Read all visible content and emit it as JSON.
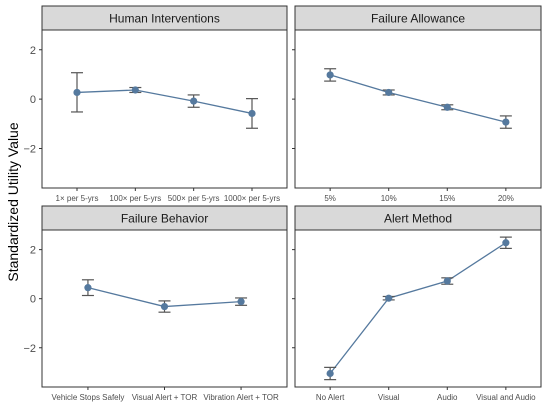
{
  "chart_data": {
    "type": "line",
    "ylabel": "Standardized Utility Value",
    "ylim": [
      -3.6,
      2.8
    ],
    "yticks": [
      -2,
      0,
      2
    ],
    "ytick_labels": [
      "−2",
      "0",
      "2"
    ],
    "color": "#55799e",
    "errorbar_color": "#555555",
    "grid": true,
    "panels": [
      {
        "title": "Human Interventions",
        "categories": [
          "1× per 5-yrs",
          "100× per 5-yrs",
          "500× per 5-yrs",
          "1000× per 5-yrs"
        ],
        "values": [
          0.27,
          0.37,
          -0.08,
          -0.58
        ],
        "lower": [
          -0.52,
          0.27,
          -0.33,
          -1.18
        ],
        "upper": [
          1.07,
          0.47,
          0.17,
          0.02
        ]
      },
      {
        "title": "Failure Allowance",
        "categories": [
          "5%",
          "10%",
          "15%",
          "20%"
        ],
        "values": [
          0.98,
          0.27,
          -0.33,
          -0.93
        ],
        "lower": [
          0.73,
          0.17,
          -0.43,
          -1.18
        ],
        "upper": [
          1.23,
          0.37,
          -0.23,
          -0.68
        ]
      },
      {
        "title": "Failure Behavior",
        "categories": [
          "Vehicle Stops Safely",
          "Visual Alert + TOR",
          "Vibration Alert + TOR"
        ],
        "values": [
          0.45,
          -0.32,
          -0.12
        ],
        "lower": [
          0.13,
          -0.55,
          -0.27
        ],
        "upper": [
          0.77,
          -0.09,
          0.03
        ]
      },
      {
        "title": "Alert Method",
        "categories": [
          "No Alert",
          "Visual",
          "Audio",
          "Visual and Audio"
        ],
        "values": [
          -3.05,
          0.02,
          0.72,
          2.28
        ],
        "lower": [
          -3.3,
          -0.05,
          0.59,
          2.05
        ],
        "upper": [
          -2.8,
          0.09,
          0.85,
          2.51
        ]
      }
    ]
  }
}
